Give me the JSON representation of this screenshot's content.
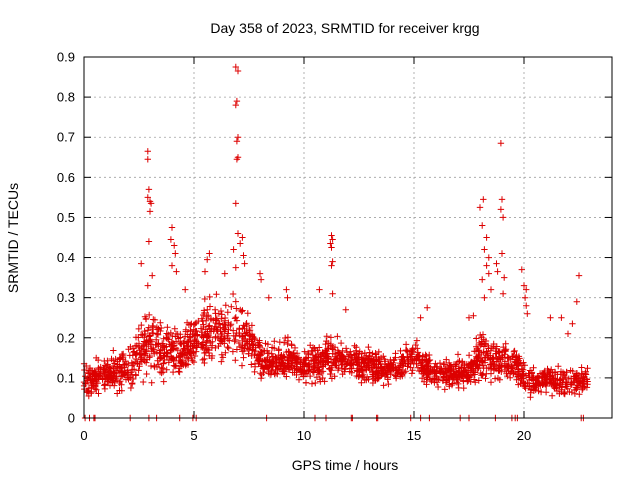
{
  "chart_data": {
    "type": "scatter",
    "title": "Day 358 of 2023, SRMTID for receiver krgg",
    "xlabel": "GPS time / hours",
    "ylabel": "SRMTID / TECUs",
    "xlim": [
      0,
      24
    ],
    "ylim": [
      0,
      0.9
    ],
    "x_ticks": [
      0,
      5,
      10,
      15,
      20
    ],
    "y_ticks": [
      0,
      0.1,
      0.2,
      0.3,
      0.4,
      0.5,
      0.6,
      0.7,
      0.8,
      0.9
    ],
    "x_tick_labels": [
      "0",
      "5",
      "10",
      "15",
      "20"
    ],
    "y_tick_labels": [
      "0",
      "0.1",
      "0.2",
      "0.3",
      "0.4",
      "0.5",
      "0.6",
      "0.7",
      "0.8",
      "0.9"
    ],
    "grid": true,
    "marker": "+",
    "marker_color": "#dd0000",
    "x_end_hours": 22.9,
    "profile_hours": [
      0,
      0.5,
      1,
      1.5,
      2,
      2.5,
      3,
      3.5,
      4,
      4.5,
      5,
      5.5,
      6,
      6.5,
      7,
      7.5,
      8,
      8.5,
      9,
      9.5,
      10,
      10.5,
      11,
      11.5,
      12,
      12.5,
      13,
      13.5,
      14,
      14.5,
      15,
      15.5,
      16,
      16.5,
      17,
      17.5,
      18,
      18.5,
      19,
      19.5,
      20,
      20.5,
      21,
      21.5,
      22,
      22.5,
      23
    ],
    "profile_median": [
      0.1,
      0.1,
      0.11,
      0.11,
      0.13,
      0.16,
      0.19,
      0.17,
      0.16,
      0.16,
      0.2,
      0.21,
      0.22,
      0.22,
      0.22,
      0.19,
      0.15,
      0.14,
      0.15,
      0.14,
      0.13,
      0.14,
      0.15,
      0.15,
      0.14,
      0.14,
      0.13,
      0.12,
      0.12,
      0.13,
      0.16,
      0.13,
      0.11,
      0.11,
      0.11,
      0.12,
      0.15,
      0.14,
      0.14,
      0.14,
      0.1,
      0.09,
      0.09,
      0.09,
      0.09,
      0.09,
      0.09
    ],
    "profile_spread": [
      0.05,
      0.05,
      0.05,
      0.05,
      0.06,
      0.08,
      0.1,
      0.07,
      0.07,
      0.07,
      0.08,
      0.09,
      0.09,
      0.09,
      0.1,
      0.07,
      0.05,
      0.05,
      0.05,
      0.05,
      0.05,
      0.06,
      0.06,
      0.05,
      0.05,
      0.05,
      0.05,
      0.05,
      0.04,
      0.05,
      0.05,
      0.05,
      0.04,
      0.04,
      0.04,
      0.05,
      0.07,
      0.07,
      0.06,
      0.06,
      0.05,
      0.04,
      0.05,
      0.05,
      0.05,
      0.04,
      0.04
    ],
    "peak_points": [
      {
        "x": 2.9,
        "y": 0.665
      },
      {
        "x": 2.9,
        "y": 0.645
      },
      {
        "x": 2.95,
        "y": 0.57
      },
      {
        "x": 2.9,
        "y": 0.55
      },
      {
        "x": 3.0,
        "y": 0.54
      },
      {
        "x": 3.05,
        "y": 0.535
      },
      {
        "x": 3.0,
        "y": 0.515
      },
      {
        "x": 2.95,
        "y": 0.44
      },
      {
        "x": 2.6,
        "y": 0.385
      },
      {
        "x": 3.1,
        "y": 0.355
      },
      {
        "x": 2.9,
        "y": 0.33
      },
      {
        "x": 4.0,
        "y": 0.475
      },
      {
        "x": 3.95,
        "y": 0.445
      },
      {
        "x": 4.1,
        "y": 0.43
      },
      {
        "x": 4.15,
        "y": 0.41
      },
      {
        "x": 4.0,
        "y": 0.38
      },
      {
        "x": 4.2,
        "y": 0.365
      },
      {
        "x": 4.6,
        "y": 0.32
      },
      {
        "x": 5.7,
        "y": 0.41
      },
      {
        "x": 5.6,
        "y": 0.395
      },
      {
        "x": 5.5,
        "y": 0.365
      },
      {
        "x": 6.4,
        "y": 0.36
      },
      {
        "x": 6.9,
        "y": 0.875
      },
      {
        "x": 7.0,
        "y": 0.865
      },
      {
        "x": 6.95,
        "y": 0.79
      },
      {
        "x": 6.9,
        "y": 0.78
      },
      {
        "x": 7.0,
        "y": 0.7
      },
      {
        "x": 6.95,
        "y": 0.69
      },
      {
        "x": 7.0,
        "y": 0.65
      },
      {
        "x": 6.95,
        "y": 0.645
      },
      {
        "x": 6.9,
        "y": 0.535
      },
      {
        "x": 7.0,
        "y": 0.46
      },
      {
        "x": 7.2,
        "y": 0.45
      },
      {
        "x": 7.1,
        "y": 0.435
      },
      {
        "x": 6.8,
        "y": 0.42
      },
      {
        "x": 7.25,
        "y": 0.405
      },
      {
        "x": 7.3,
        "y": 0.385
      },
      {
        "x": 6.9,
        "y": 0.375
      },
      {
        "x": 8.0,
        "y": 0.36
      },
      {
        "x": 8.05,
        "y": 0.345
      },
      {
        "x": 8.4,
        "y": 0.3
      },
      {
        "x": 9.2,
        "y": 0.32
      },
      {
        "x": 9.25,
        "y": 0.3
      },
      {
        "x": 10.7,
        "y": 0.32
      },
      {
        "x": 11.25,
        "y": 0.455
      },
      {
        "x": 11.3,
        "y": 0.445
      },
      {
        "x": 11.2,
        "y": 0.435
      },
      {
        "x": 11.25,
        "y": 0.425
      },
      {
        "x": 11.3,
        "y": 0.39
      },
      {
        "x": 11.25,
        "y": 0.38
      },
      {
        "x": 11.3,
        "y": 0.31
      },
      {
        "x": 11.9,
        "y": 0.27
      },
      {
        "x": 15.6,
        "y": 0.275
      },
      {
        "x": 15.3,
        "y": 0.25
      },
      {
        "x": 17.5,
        "y": 0.25
      },
      {
        "x": 17.7,
        "y": 0.255
      },
      {
        "x": 18.0,
        "y": 0.525
      },
      {
        "x": 18.15,
        "y": 0.545
      },
      {
        "x": 18.1,
        "y": 0.48
      },
      {
        "x": 18.3,
        "y": 0.45
      },
      {
        "x": 18.2,
        "y": 0.42
      },
      {
        "x": 18.4,
        "y": 0.4
      },
      {
        "x": 18.3,
        "y": 0.38
      },
      {
        "x": 18.4,
        "y": 0.36
      },
      {
        "x": 18.1,
        "y": 0.345
      },
      {
        "x": 18.5,
        "y": 0.32
      },
      {
        "x": 18.2,
        "y": 0.3
      },
      {
        "x": 18.75,
        "y": 0.385
      },
      {
        "x": 18.8,
        "y": 0.365
      },
      {
        "x": 18.95,
        "y": 0.685
      },
      {
        "x": 19.0,
        "y": 0.545
      },
      {
        "x": 18.95,
        "y": 0.52
      },
      {
        "x": 19.05,
        "y": 0.5
      },
      {
        "x": 19.0,
        "y": 0.41
      },
      {
        "x": 19.1,
        "y": 0.35
      },
      {
        "x": 19.05,
        "y": 0.31
      },
      {
        "x": 19.9,
        "y": 0.37
      },
      {
        "x": 20.0,
        "y": 0.33
      },
      {
        "x": 20.1,
        "y": 0.32
      },
      {
        "x": 20.05,
        "y": 0.3
      },
      {
        "x": 20.1,
        "y": 0.28
      },
      {
        "x": 20.15,
        "y": 0.26
      },
      {
        "x": 22.5,
        "y": 0.355
      },
      {
        "x": 22.4,
        "y": 0.29
      },
      {
        "x": 21.2,
        "y": 0.25
      },
      {
        "x": 21.7,
        "y": 0.25
      },
      {
        "x": 22.2,
        "y": 0.235
      },
      {
        "x": 22.0,
        "y": 0.21
      }
    ],
    "zero_points": [
      0.05,
      0.25,
      0.45,
      0.5,
      2.1,
      2.95,
      3.3,
      4.35,
      4.95,
      5.1,
      8.3,
      10.5,
      11.0,
      12.15,
      12.2,
      13.3,
      13.35,
      14.85,
      15.3,
      15.7,
      17.1,
      17.5,
      18.7,
      19.45,
      19.6,
      19.7,
      22.6,
      22.7
    ]
  }
}
